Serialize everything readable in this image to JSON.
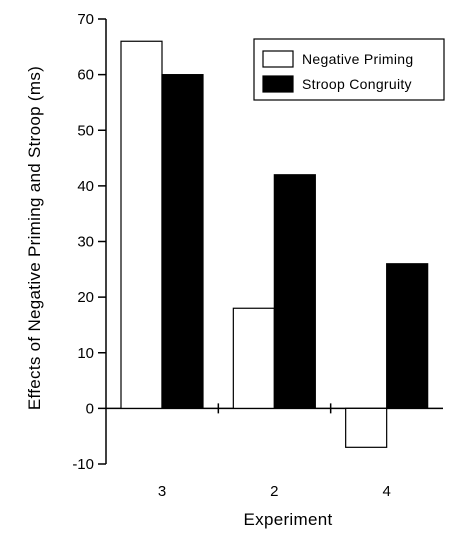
{
  "chart_data": {
    "type": "bar",
    "title": "",
    "xlabel": "Experiment",
    "ylabel": "Effects of Negative Priming and Stroop (ms)",
    "categories": [
      "3",
      "2",
      "4"
    ],
    "series": [
      {
        "name": "Negative Priming",
        "values": [
          66,
          18,
          -7
        ],
        "fill": "#ffffff"
      },
      {
        "name": "Stroop Congruity",
        "values": [
          60,
          42,
          26
        ],
        "fill": "#000000"
      }
    ],
    "ylim": [
      -10,
      70
    ],
    "yticks": [
      -10,
      0,
      10,
      20,
      30,
      40,
      50,
      60,
      70
    ],
    "legend_position": "top-right",
    "grid": false
  }
}
